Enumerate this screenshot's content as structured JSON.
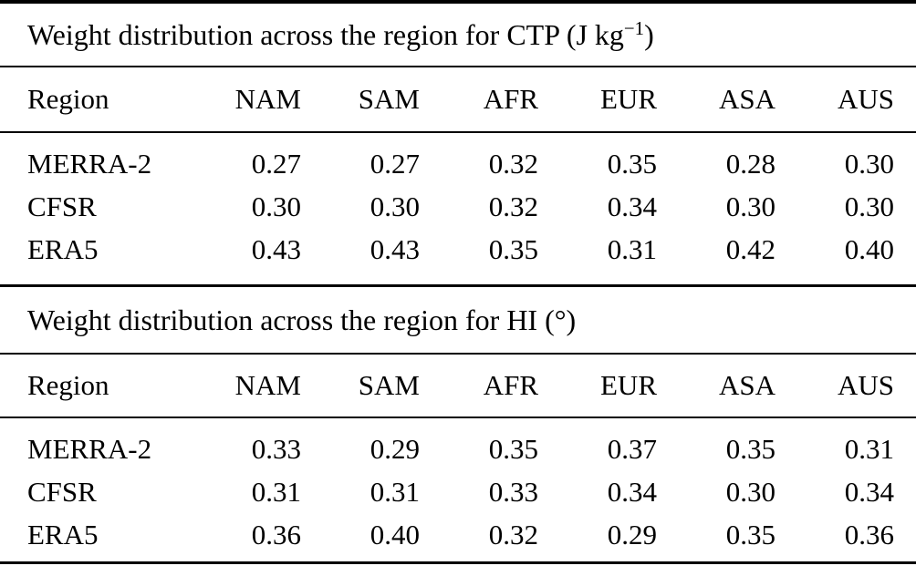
{
  "colors": {
    "text": "#000000",
    "background": "#ffffff",
    "rule": "#000000"
  },
  "table1": {
    "title_pre": "Weight distribution across the region for CTP (J kg",
    "title_sup": "−1",
    "title_post": ")",
    "columns": [
      "Region",
      "NAM",
      "SAM",
      "AFR",
      "EUR",
      "ASA",
      "AUS"
    ],
    "rows": [
      {
        "label": "MERRA-2",
        "values": [
          "0.27",
          "0.27",
          "0.32",
          "0.35",
          "0.28",
          "0.30"
        ]
      },
      {
        "label": "CFSR",
        "values": [
          "0.30",
          "0.30",
          "0.32",
          "0.34",
          "0.30",
          "0.30"
        ]
      },
      {
        "label": "ERA5",
        "values": [
          "0.43",
          "0.43",
          "0.35",
          "0.31",
          "0.42",
          "0.40"
        ]
      }
    ]
  },
  "table2": {
    "title": "Weight distribution across the region for HI (°)",
    "columns": [
      "Region",
      "NAM",
      "SAM",
      "AFR",
      "EUR",
      "ASA",
      "AUS"
    ],
    "rows": [
      {
        "label": "MERRA-2",
        "values": [
          "0.33",
          "0.29",
          "0.35",
          "0.37",
          "0.35",
          "0.31"
        ]
      },
      {
        "label": "CFSR",
        "values": [
          "0.31",
          "0.31",
          "0.33",
          "0.34",
          "0.30",
          "0.34"
        ]
      },
      {
        "label": "ERA5",
        "values": [
          "0.36",
          "0.40",
          "0.32",
          "0.29",
          "0.35",
          "0.36"
        ]
      }
    ]
  },
  "chart_data": [
    {
      "type": "table",
      "title": "Weight distribution across the region for CTP (J kg−1)",
      "categories": [
        "NAM",
        "SAM",
        "AFR",
        "EUR",
        "ASA",
        "AUS"
      ],
      "series": [
        {
          "name": "MERRA-2",
          "values": [
            0.27,
            0.27,
            0.32,
            0.35,
            0.28,
            0.3
          ]
        },
        {
          "name": "CFSR",
          "values": [
            0.3,
            0.3,
            0.32,
            0.34,
            0.3,
            0.3
          ]
        },
        {
          "name": "ERA5",
          "values": [
            0.43,
            0.43,
            0.35,
            0.31,
            0.42,
            0.4
          ]
        }
      ]
    },
    {
      "type": "table",
      "title": "Weight distribution across the region for HI (°)",
      "categories": [
        "NAM",
        "SAM",
        "AFR",
        "EUR",
        "ASA",
        "AUS"
      ],
      "series": [
        {
          "name": "MERRA-2",
          "values": [
            0.33,
            0.29,
            0.35,
            0.37,
            0.35,
            0.31
          ]
        },
        {
          "name": "CFSR",
          "values": [
            0.31,
            0.31,
            0.33,
            0.34,
            0.3,
            0.34
          ]
        },
        {
          "name": "ERA5",
          "values": [
            0.36,
            0.4,
            0.32,
            0.29,
            0.35,
            0.36
          ]
        }
      ]
    }
  ]
}
